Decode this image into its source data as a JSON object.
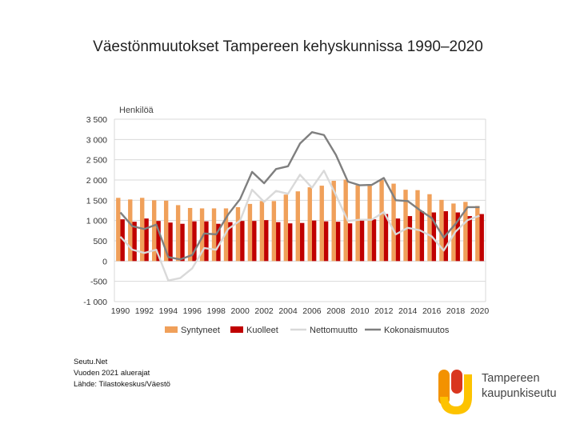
{
  "page": {
    "title": "Väestönmuutokset Tampereen kehyskunnissa 1990–2020"
  },
  "source_lines": [
    "Seutu.Net",
    "Vuoden 2021 aluerajat",
    "Lähde: Tilastokeskus/Väestö"
  ],
  "logo": {
    "line1": "Tampereen",
    "line2": "kaupunkiseutu"
  },
  "colors": {
    "syntyneet": "#f0a05a",
    "kuolleet": "#c00000",
    "nettomuutto": "#d9d9d9",
    "kokonaismuutos": "#7f7f7f",
    "grid": "#d9d9d9",
    "logo_orange": "#f39200",
    "logo_red": "#d9361f",
    "logo_yellow": "#fdc300"
  },
  "chart_data": {
    "type": "bar",
    "title": "",
    "ylabel": "Henkilöä",
    "xlabel": "",
    "ylim": [
      -1000,
      3500
    ],
    "yticks": [
      -1000,
      -500,
      0,
      500,
      1000,
      1500,
      2000,
      2500,
      3000,
      3500
    ],
    "ytick_labels": [
      "-1 000",
      "-500",
      "0",
      "500",
      "1 000",
      "1 500",
      "2 000",
      "2 500",
      "3 000",
      "3 500"
    ],
    "x": [
      1990,
      1991,
      1992,
      1993,
      1994,
      1995,
      1996,
      1997,
      1998,
      1999,
      2000,
      2001,
      2002,
      2003,
      2004,
      2005,
      2006,
      2007,
      2008,
      2009,
      2010,
      2011,
      2012,
      2013,
      2014,
      2015,
      2016,
      2017,
      2018,
      2019,
      2020
    ],
    "xtick_labels": [
      "1990",
      "1992",
      "1994",
      "1996",
      "1998",
      "2000",
      "2002",
      "2004",
      "2006",
      "2008",
      "2010",
      "2012",
      "2014",
      "2016",
      "2018",
      "2020"
    ],
    "legend_position": "bottom",
    "grid": true,
    "series": [
      {
        "name": "Syntyneet",
        "kind": "bar",
        "values": [
          1560,
          1520,
          1560,
          1500,
          1490,
          1380,
          1310,
          1300,
          1300,
          1300,
          1330,
          1410,
          1480,
          1480,
          1640,
          1720,
          1820,
          1860,
          1980,
          2010,
          1870,
          1900,
          2000,
          1910,
          1760,
          1750,
          1650,
          1510,
          1420,
          1460,
          1360
        ]
      },
      {
        "name": "Kuolleet",
        "kind": "bar",
        "values": [
          1030,
          970,
          1050,
          990,
          950,
          920,
          980,
          980,
          920,
          960,
          990,
          990,
          1010,
          960,
          930,
          940,
          1000,
          980,
          970,
          930,
          1010,
          1030,
          1160,
          1050,
          1110,
          1230,
          1200,
          1230,
          1200,
          1110,
          1160
        ]
      },
      {
        "name": "Nettomuutto",
        "kind": "line",
        "values": [
          600,
          280,
          200,
          280,
          -480,
          -420,
          -180,
          320,
          280,
          790,
          1000,
          1760,
          1460,
          1730,
          1660,
          2130,
          1810,
          2230,
          1630,
          990,
          1020,
          1020,
          1210,
          660,
          820,
          760,
          610,
          260,
          730,
          1010,
          1120
        ]
      },
      {
        "name": "Kokonaismuutos",
        "kind": "line",
        "values": [
          1200,
          860,
          790,
          900,
          100,
          40,
          150,
          680,
          660,
          1150,
          1530,
          2200,
          1920,
          2270,
          2340,
          2900,
          3180,
          3110,
          2620,
          1960,
          1870,
          1880,
          2050,
          1500,
          1480,
          1260,
          1060,
          580,
          920,
          1330,
          1330
        ]
      }
    ]
  }
}
